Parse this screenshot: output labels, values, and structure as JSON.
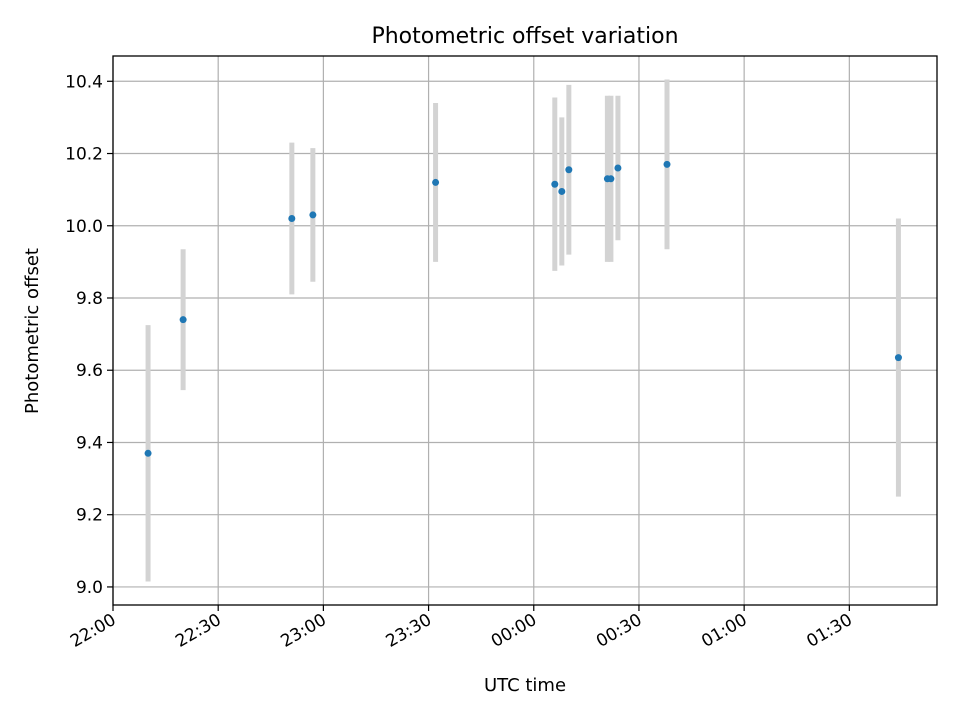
{
  "chart_data": {
    "type": "scatter",
    "title": "Photometric offset variation",
    "xlabel": "UTC time",
    "ylabel": "Photometric offset",
    "grid": true,
    "xlim": [
      "22:00",
      "01:55"
    ],
    "ylim": [
      8.95,
      10.47
    ],
    "x_ticks": [
      "22:00",
      "22:30",
      "23:00",
      "23:30",
      "00:00",
      "00:30",
      "01:00",
      "01:30"
    ],
    "y_ticks": [
      "9.0",
      "9.2",
      "9.4",
      "9.6",
      "9.8",
      "10.0",
      "10.2",
      "10.4"
    ],
    "marker_color": "#1f77b4",
    "errorbar_color": "#d3d3d3",
    "points": [
      {
        "time": "22:10",
        "y": 9.37,
        "err": 0.355
      },
      {
        "time": "22:20",
        "y": 9.74,
        "err": 0.195
      },
      {
        "time": "22:51",
        "y": 10.02,
        "err": 0.21
      },
      {
        "time": "22:57",
        "y": 10.03,
        "err": 0.185
      },
      {
        "time": "23:32",
        "y": 10.12,
        "err": 0.22
      },
      {
        "time": "00:06",
        "y": 10.115,
        "err": 0.24
      },
      {
        "time": "00:08",
        "y": 10.095,
        "err": 0.205
      },
      {
        "time": "00:10",
        "y": 10.155,
        "err": 0.235
      },
      {
        "time": "00:21",
        "y": 10.13,
        "err": 0.23
      },
      {
        "time": "00:22",
        "y": 10.13,
        "err": 0.23
      },
      {
        "time": "00:24",
        "y": 10.16,
        "err": 0.2
      },
      {
        "time": "00:38",
        "y": 10.17,
        "err": 0.235
      },
      {
        "time": "01:44",
        "y": 9.635,
        "err": 0.385
      }
    ]
  }
}
